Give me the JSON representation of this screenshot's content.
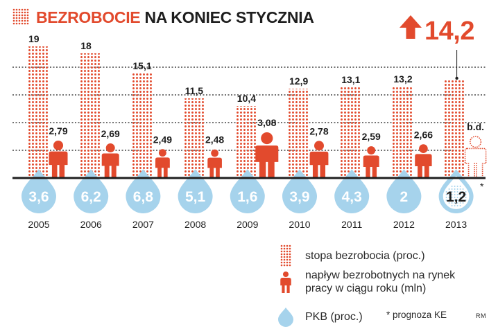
{
  "title": {
    "highlight": "BEZROBOCIE",
    "rest": "NA KONIEC STYCZNIA"
  },
  "colors": {
    "accent": "#e24a2d",
    "drop": "#a6d3ec",
    "drop_text": "#ffffff",
    "text": "#1e1e1e",
    "axis": "#1e1e1e"
  },
  "chart_data": {
    "type": "bar",
    "title": "BEZROBOCIE NA KONIEC STYCZNIA",
    "categories": [
      "2005",
      "2006",
      "2007",
      "2008",
      "2009",
      "2010",
      "2011",
      "2012",
      "2013"
    ],
    "series": [
      {
        "name": "stopa bezrobocia (proc.)",
        "values": [
          19,
          18,
          15.1,
          11.5,
          10.4,
          12.9,
          13.1,
          13.2,
          14.2
        ],
        "labels": [
          "19",
          "18",
          "15,1",
          "11,5",
          "10,4",
          "12,9",
          "13,1",
          "13,2",
          "14,2"
        ]
      },
      {
        "name": "napływ bezrobotnych na rynek pracy w ciągu roku (mln)",
        "values": [
          2.79,
          2.69,
          2.49,
          2.48,
          3.08,
          2.78,
          2.59,
          2.66,
          null
        ],
        "labels": [
          "2,79",
          "2,69",
          "2,49",
          "2,48",
          "3,08",
          "2,78",
          "2,59",
          "2,66",
          "b.d."
        ]
      },
      {
        "name": "PKB (proc.)",
        "values": [
          3.6,
          6.2,
          6.8,
          5.1,
          1.6,
          3.9,
          4.3,
          2,
          1.2
        ],
        "labels": [
          "3,6",
          "6,2",
          "6,8",
          "5,1",
          "1,6",
          "3,9",
          "4,3",
          "2",
          "1,2"
        ]
      }
    ],
    "highlight_value": "14,2",
    "forecast_marker": "*",
    "ylim": [
      0,
      20
    ],
    "grid": true,
    "legend_position": "bottom-right"
  },
  "legend": {
    "unemployment": "stopa bezrobocia (proc.)",
    "inflow_line1": "napływ bezrobotnych na rynek",
    "inflow_line2": "pracy w ciągu roku (mln)",
    "gdp": "PKB (proc.)"
  },
  "footnote": "* prognoza KE",
  "credit": "RM"
}
